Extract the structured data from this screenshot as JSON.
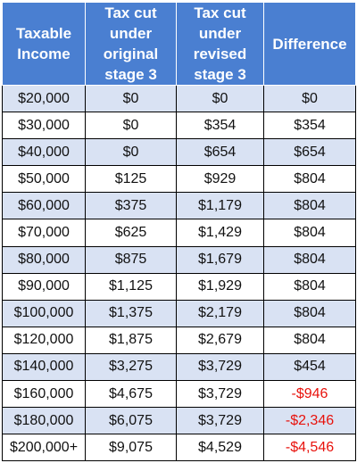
{
  "chart_data": {
    "type": "table",
    "columns": [
      {
        "lines": [
          "Taxable",
          "Income"
        ]
      },
      {
        "lines": [
          "Tax cut",
          "under",
          "original",
          "stage 3"
        ]
      },
      {
        "lines": [
          "Tax cut",
          "under",
          "revised",
          "stage 3"
        ]
      },
      {
        "lines": [
          "Difference"
        ]
      }
    ],
    "rows": [
      [
        "$20,000",
        "$0",
        "$0",
        "$0"
      ],
      [
        "$30,000",
        "$0",
        "$354",
        "$354"
      ],
      [
        "$40,000",
        "$0",
        "$654",
        "$654"
      ],
      [
        "$50,000",
        "$125",
        "$929",
        "$804"
      ],
      [
        "$60,000",
        "$375",
        "$1,179",
        "$804"
      ],
      [
        "$70,000",
        "$625",
        "$1,429",
        "$804"
      ],
      [
        "$80,000",
        "$875",
        "$1,679",
        "$804"
      ],
      [
        "$90,000",
        "$1,125",
        "$1,929",
        "$804"
      ],
      [
        "$100,000",
        "$1,375",
        "$2,179",
        "$804"
      ],
      [
        "$120,000",
        "$1,875",
        "$2,679",
        "$804"
      ],
      [
        "$140,000",
        "$3,275",
        "$3,729",
        "$454"
      ],
      [
        "$160,000",
        "$4,675",
        "$3,729",
        "-$946"
      ],
      [
        "$180,000",
        "$6,075",
        "$3,729",
        "-$2,346"
      ],
      [
        "$200,000+",
        "$9,075",
        "$4,529",
        "-$4,546"
      ]
    ]
  },
  "colors": {
    "header_bg": "#4a7fd1",
    "header_text": "#ffffff",
    "stripe_bg": "#d9e2f3",
    "negative_text": "#e8120c"
  }
}
